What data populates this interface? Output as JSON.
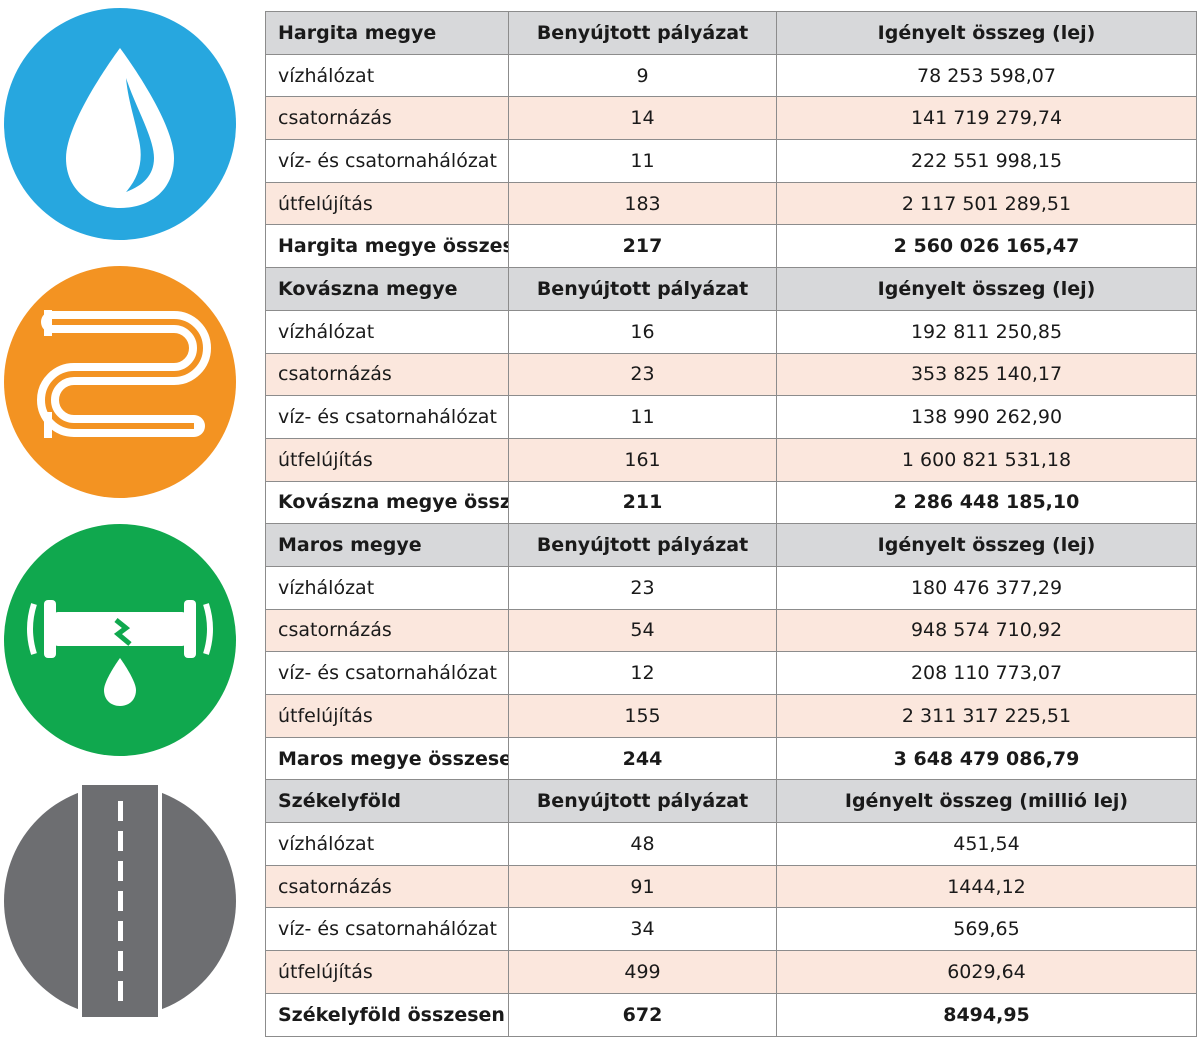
{
  "colors": {
    "water": "#27a7df",
    "radiator": "#f39322",
    "pipe": "#10a84e",
    "road": "#6d6e71",
    "header_bg": "#d7d8da",
    "alt_row_bg": "#fbe7dd"
  },
  "icons": [
    "water-drop-icon",
    "radiator-icon",
    "broken-pipe-icon",
    "road-icon"
  ],
  "sections": [
    {
      "header": [
        "Hargita megye",
        "Benyújtott pályázat",
        "Igényelt összeg (lej)"
      ],
      "rows": [
        [
          "vízhálózat",
          "9",
          "78 253 598,07"
        ],
        [
          "csatornázás",
          "14",
          "141 719 279,74"
        ],
        [
          "víz- és csatornahálózat",
          "11",
          "222 551 998,15"
        ],
        [
          "útfelújítás",
          "183",
          "2 117 501 289,51"
        ]
      ],
      "total": [
        "Hargita megye összesen",
        "217",
        "2 560 026 165,47"
      ]
    },
    {
      "header": [
        "Kovászna megye",
        "Benyújtott pályázat",
        "Igényelt összeg (lej)"
      ],
      "rows": [
        [
          "vízhálózat",
          "16",
          "192 811 250,85"
        ],
        [
          "csatornázás",
          "23",
          "353 825 140,17"
        ],
        [
          "víz- és csatornahálózat",
          "11",
          "138 990 262,90"
        ],
        [
          "útfelújítás",
          "161",
          "1 600 821 531,18"
        ]
      ],
      "total": [
        "Kovászna megye összesen",
        "211",
        "2 286 448 185,10"
      ]
    },
    {
      "header": [
        "Maros megye",
        "Benyújtott pályázat",
        "Igényelt összeg (lej)"
      ],
      "rows": [
        [
          "vízhálózat",
          "23",
          "180 476 377,29"
        ],
        [
          "csatornázás",
          "54",
          "948 574 710,92"
        ],
        [
          "víz- és csatornahálózat",
          "12",
          "208 110 773,07"
        ],
        [
          "útfelújítás",
          "155",
          "2 311 317 225,51"
        ]
      ],
      "total": [
        "Maros megye összesen",
        "244",
        "3 648 479 086,79"
      ]
    },
    {
      "header": [
        "Székelyföld",
        "Benyújtott pályázat",
        "Igényelt összeg (millió lej)"
      ],
      "rows": [
        [
          "vízhálózat",
          "48",
          "451,54"
        ],
        [
          "csatornázás",
          "91",
          "1444,12"
        ],
        [
          "víz- és csatornahálózat",
          "34",
          "569,65"
        ],
        [
          "útfelújítás",
          "499",
          "6029,64"
        ]
      ],
      "total": [
        "Székelyföld összesen",
        "672",
        "8494,95"
      ]
    }
  ]
}
